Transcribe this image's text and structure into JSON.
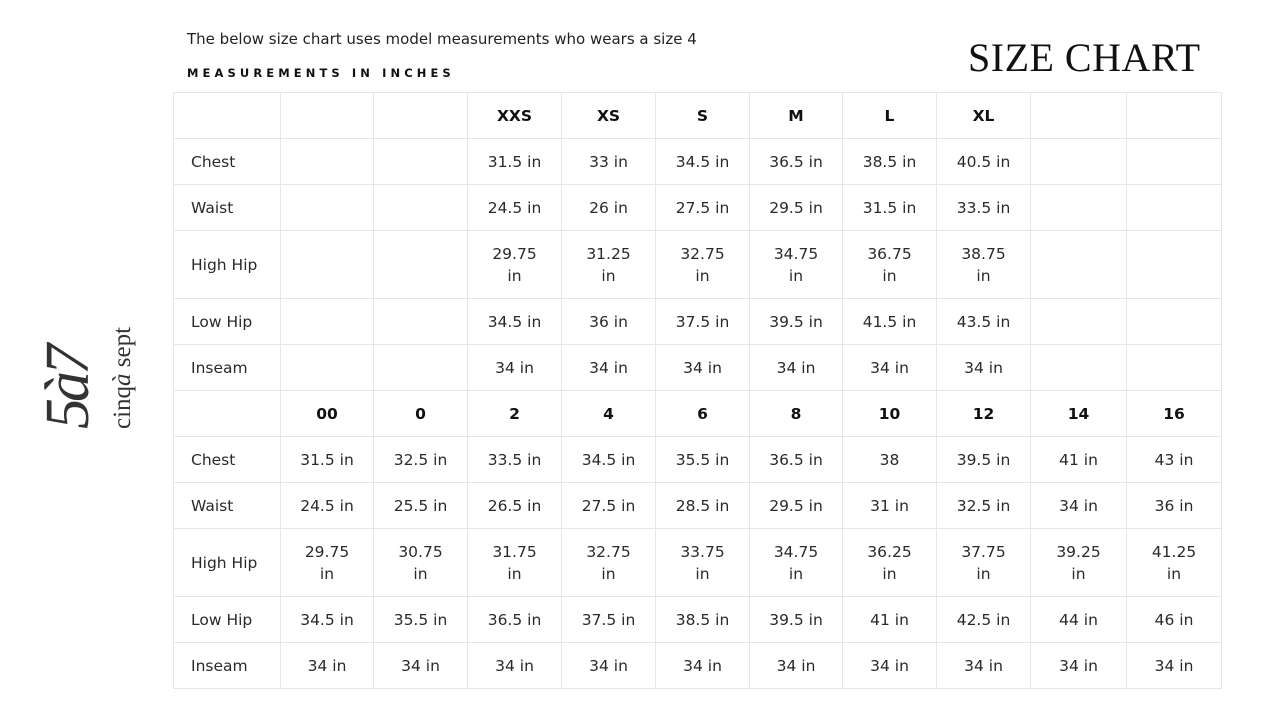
{
  "intro_text": "The below size chart uses model measurements who wears a size 4",
  "subheading": "MEASUREMENTS IN INCHES",
  "title": "SIZE CHART",
  "logo": {
    "mark": "5à7",
    "wordmark_part1": "cinq",
    "wordmark_accent": "à",
    "wordmark_part2": "sept"
  },
  "alpha_sizes": {
    "headers": [
      "",
      "",
      "",
      "XXS",
      "XS",
      "S",
      "M",
      "L",
      "XL",
      "",
      ""
    ],
    "rows": [
      {
        "label": "Chest",
        "values": [
          "",
          "",
          "31.5 in",
          "33 in",
          "34.5 in",
          "36.5 in",
          "38.5 in",
          "40.5 in",
          "",
          ""
        ]
      },
      {
        "label": "Waist",
        "values": [
          "",
          "",
          "24.5 in",
          "26 in",
          "27.5 in",
          "29.5 in",
          "31.5 in",
          "33.5 in",
          "",
          ""
        ]
      },
      {
        "label": "High Hip",
        "values": [
          "",
          "",
          "29.75 in",
          "31.25 in",
          "32.75 in",
          "34.75 in",
          "36.75 in",
          "38.75 in",
          "",
          ""
        ]
      },
      {
        "label": "Low Hip",
        "values": [
          "",
          "",
          "34.5 in",
          "36 in",
          "37.5 in",
          "39.5 in",
          "41.5 in",
          "43.5 in",
          "",
          ""
        ]
      },
      {
        "label": "Inseam",
        "values": [
          "",
          "",
          "34 in",
          "34 in",
          "34 in",
          "34 in",
          "34 in",
          "34 in",
          "",
          ""
        ]
      }
    ]
  },
  "numeric_sizes": {
    "headers": [
      "",
      "00",
      "0",
      "2",
      "4",
      "6",
      "8",
      "10",
      "12",
      "14",
      "16"
    ],
    "rows": [
      {
        "label": "Chest",
        "values": [
          "31.5 in",
          "32.5 in",
          "33.5 in",
          "34.5 in",
          "35.5 in",
          "36.5 in",
          "38",
          "39.5 in",
          "41 in",
          "43 in"
        ]
      },
      {
        "label": "Waist",
        "values": [
          "24.5 in",
          "25.5 in",
          "26.5 in",
          "27.5 in",
          "28.5 in",
          "29.5 in",
          "31 in",
          "32.5 in",
          "34 in",
          "36 in"
        ]
      },
      {
        "label": "High Hip",
        "values": [
          "29.75 in",
          "30.75 in",
          "31.75 in",
          "32.75 in",
          "33.75 in",
          "34.75 in",
          "36.25 in",
          "37.75 in",
          "39.25 in",
          "41.25 in"
        ]
      },
      {
        "label": "Low Hip",
        "values": [
          "34.5 in",
          "35.5 in",
          "36.5 in",
          "37.5 in",
          "38.5 in",
          "39.5 in",
          "41 in",
          "42.5 in",
          "44 in",
          "46 in"
        ]
      },
      {
        "label": "Inseam",
        "values": [
          "34 in",
          "34 in",
          "34 in",
          "34 in",
          "34 in",
          "34 in",
          "34 in",
          "34 in",
          "34 in",
          "34 in"
        ]
      }
    ]
  },
  "colors": {
    "text": "#222222",
    "border": "#e6e6e6",
    "background": "#ffffff"
  }
}
